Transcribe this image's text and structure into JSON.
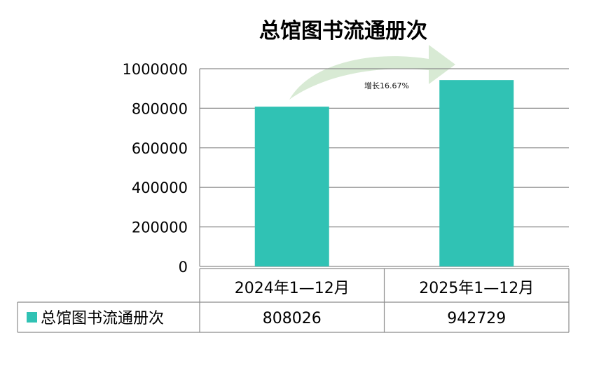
{
  "chart_data": {
    "type": "bar",
    "title": "总馆图书流通册次",
    "categories": [
      "2024年1—12月",
      "2025年1—12月"
    ],
    "series": [
      {
        "name": "总馆图书流通册次",
        "values": [
          808026,
          942729
        ]
      }
    ],
    "ylim": [
      0,
      1000000
    ],
    "yticks": [
      0,
      200000,
      400000,
      600000,
      800000,
      1000000
    ],
    "annotation": "增长16.67%",
    "grid": true,
    "data_table": true,
    "colors": {
      "series": "#30C2B4",
      "arrow": "#D4E8CF",
      "grid": "#8c8c8c"
    }
  }
}
